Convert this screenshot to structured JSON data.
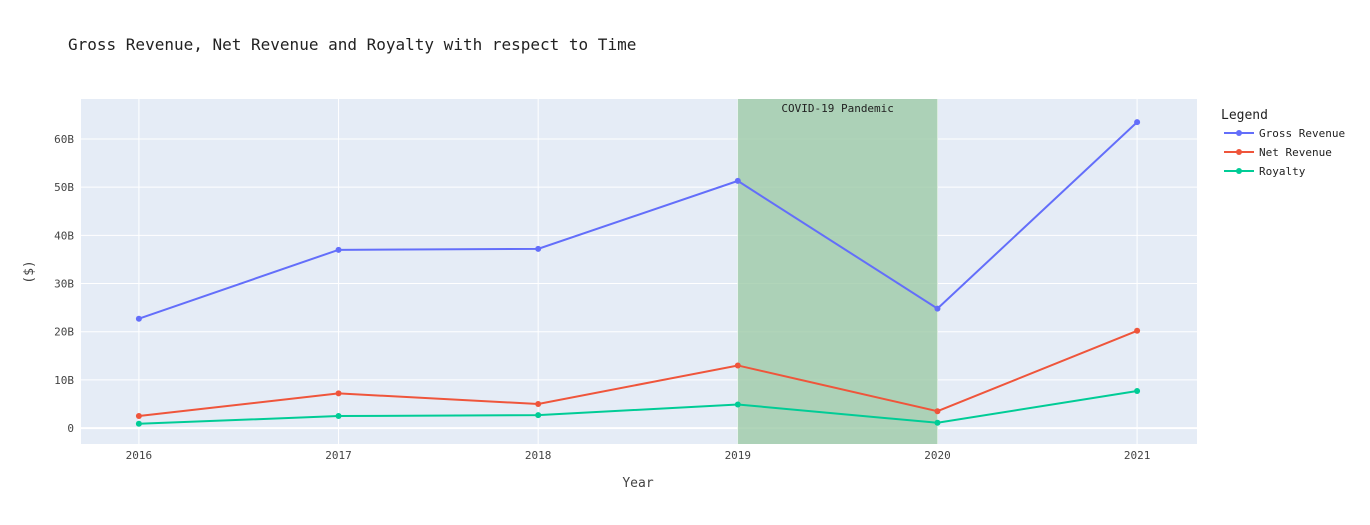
{
  "chart_data": {
    "type": "line",
    "title": "Gross Revenue, Net Revenue and Royalty with respect to Time",
    "xlabel": "Year",
    "ylabel": "($)",
    "x": [
      2016,
      2017,
      2018,
      2019,
      2020,
      2021
    ],
    "x_tick_labels": [
      "2016",
      "2017",
      "2018",
      "2019",
      "2020",
      "2021"
    ],
    "xlim": [
      2015.71,
      2021.3
    ],
    "ylim": [
      -3.3,
      68.3
    ],
    "y_ticks": [
      0,
      10,
      20,
      30,
      40,
      50,
      60
    ],
    "y_tick_labels": [
      "0",
      "10B",
      "20B",
      "30B",
      "40B",
      "50B",
      "60B"
    ],
    "grid": true,
    "plot_background": "#e5ecf6",
    "legend": {
      "title": "Legend",
      "placement": "right"
    },
    "series": [
      {
        "name": "Gross Revenue",
        "color": "#636efa",
        "values": [
          22.7,
          37.0,
          37.2,
          51.3,
          24.8,
          63.5
        ]
      },
      {
        "name": "Net Revenue",
        "color": "#ef553b",
        "values": [
          2.5,
          7.2,
          5.0,
          13.0,
          3.5,
          20.2
        ]
      },
      {
        "name": "Royalty",
        "color": "#00cc96",
        "values": [
          0.9,
          2.5,
          2.7,
          4.9,
          1.1,
          7.7
        ]
      }
    ],
    "shaded_region": {
      "x_start": 2019,
      "x_end": 2020,
      "color": "#9dcaa8",
      "label": "COVID-19 Pandemic"
    }
  }
}
